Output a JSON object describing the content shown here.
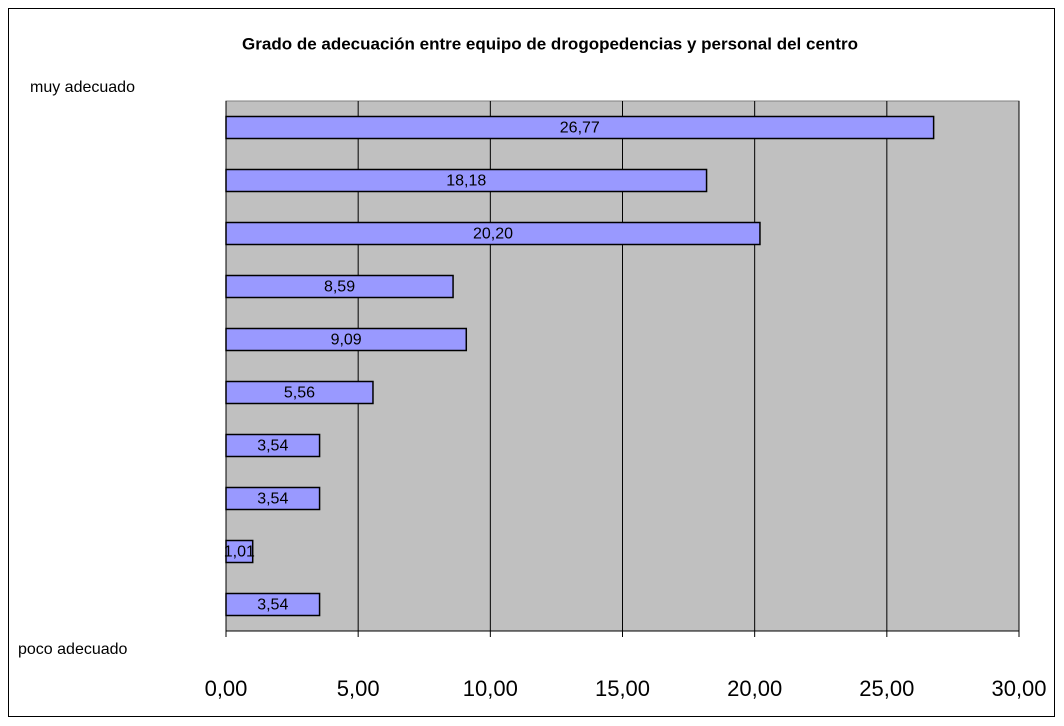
{
  "chart_data": {
    "type": "barh",
    "title": "Grado de adecuación entre equipo de drogopedencias y personal del centro",
    "annotations": [
      "muy adecuado",
      "poco adecuado"
    ],
    "categories": [
      null,
      null,
      null,
      null,
      null,
      null,
      null,
      null,
      null,
      null
    ],
    "values": [
      26.77,
      18.18,
      20.2,
      8.59,
      9.09,
      5.56,
      3.54,
      3.54,
      1.01,
      3.54
    ],
    "value_labels": [
      "26,77",
      "18,18",
      "20,20",
      "8,59",
      "9,09",
      "5,56",
      "3,54",
      "3,54",
      "1,01",
      "3,54"
    ],
    "color": "#9999ff",
    "plot_background": "#c0c0c0",
    "xlim": [
      0,
      30
    ],
    "xticks": [
      {
        "value": 0,
        "label": "0,00"
      },
      {
        "value": 5,
        "label": "5,00"
      },
      {
        "value": 10,
        "label": "10,00"
      },
      {
        "value": 15,
        "label": "15,00"
      },
      {
        "value": 20,
        "label": "20,00"
      },
      {
        "value": 25,
        "label": "25,00"
      },
      {
        "value": 30,
        "label": "30,00"
      }
    ],
    "grid": true
  }
}
